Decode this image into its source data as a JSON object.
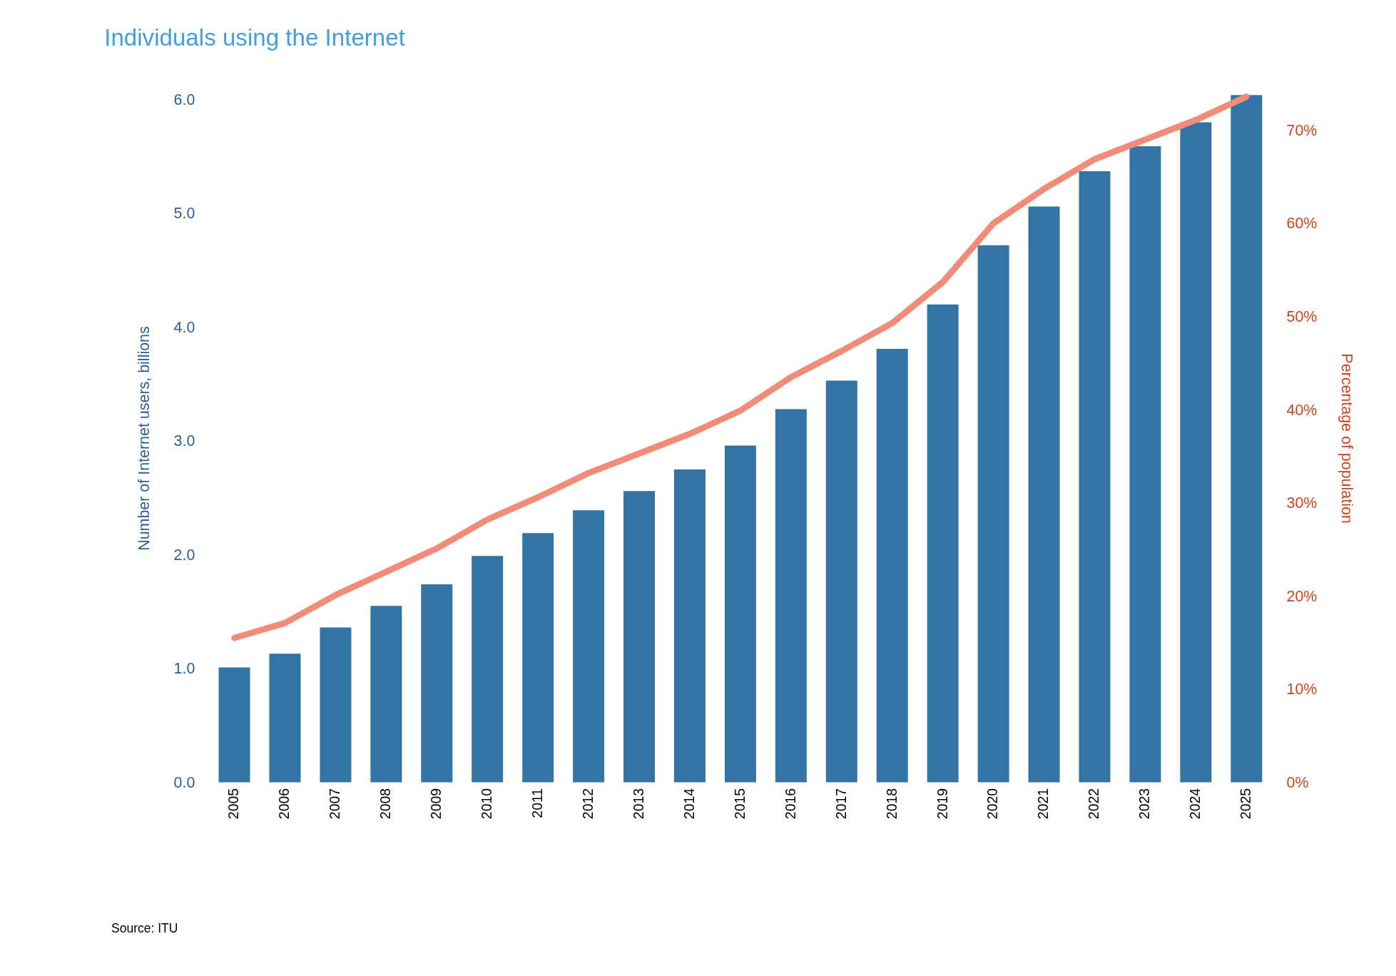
{
  "chart_data": {
    "type": "bar",
    "title": "Individuals using the Internet",
    "categories": [
      "2005",
      "2006",
      "2007",
      "2008",
      "2009",
      "2010",
      "2011",
      "2012",
      "2013",
      "2014",
      "2015",
      "2016",
      "2017",
      "2018",
      "2019",
      "2020",
      "2021",
      "2022",
      "2023",
      "2024",
      "2025"
    ],
    "series": [
      {
        "color": "#3275a5",
        "values": [
          1.01,
          1.13,
          1.36,
          1.55,
          1.74,
          1.99,
          2.19,
          2.39,
          2.56,
          2.75,
          2.96,
          3.28,
          3.53,
          3.81,
          4.2,
          4.72,
          5.06,
          5.37,
          5.59,
          5.8,
          6.04
        ]
      },
      {
        "type": "line",
        "axis": "y2",
        "color": "#f08c78",
        "values": [
          15.5,
          17.1,
          20.1,
          22.6,
          25.1,
          28.2,
          30.6,
          33.2,
          35.3,
          37.4,
          39.9,
          43.5,
          46.3,
          49.3,
          53.7,
          60.0,
          63.7,
          66.9,
          69.0,
          71.1,
          73.6
        ]
      }
    ],
    "ylabel": "Number of Internet users, billions",
    "y2label": "Percentage of population",
    "ylim": [
      0,
      6.05
    ],
    "yticks": [
      {
        "value": 0,
        "label": "0.0"
      },
      {
        "value": 1,
        "label": "1.0"
      },
      {
        "value": 2,
        "label": "2.0"
      },
      {
        "value": 3,
        "label": "3.0"
      },
      {
        "value": 4,
        "label": "4.0"
      },
      {
        "value": 5,
        "label": "5.0"
      },
      {
        "value": 6,
        "label": "6.0"
      }
    ],
    "y2lim": [
      0,
      73.9
    ],
    "y2ticks": [
      {
        "value": 0,
        "label": "0%"
      },
      {
        "value": 10,
        "label": "10%"
      },
      {
        "value": 20,
        "label": "20%"
      },
      {
        "value": 30,
        "label": "30%"
      },
      {
        "value": 40,
        "label": "40%"
      },
      {
        "value": 50,
        "label": "50%"
      },
      {
        "value": 60,
        "label": "60%"
      },
      {
        "value": 70,
        "label": "70%"
      }
    ],
    "grid": false,
    "legend": false,
    "annotations": [
      "Source: ITU"
    ]
  }
}
